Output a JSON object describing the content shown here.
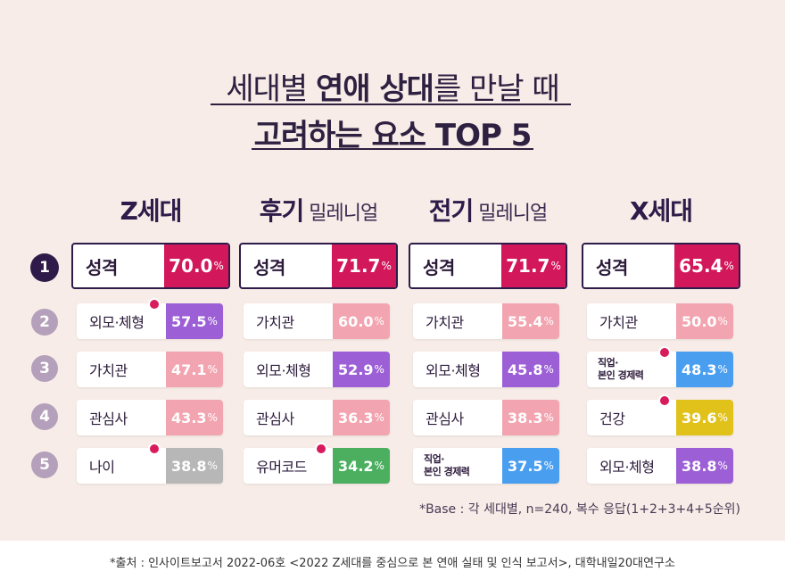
{
  "header": {
    "line1_light_a": "세대별 ",
    "line1_bold": "연애 상대",
    "line1_light_b": "를 만날 때",
    "line2": "고려하는 요소 TOP 5"
  },
  "chart_data": {
    "type": "table",
    "unit": "%",
    "ranks": [
      "1",
      "2",
      "3",
      "4",
      "5"
    ],
    "columns": [
      {
        "name": "Z세대",
        "sub": "",
        "items": [
          {
            "label": "성격",
            "value": 70.0,
            "display": "70.0",
            "color": "#d2175a"
          },
          {
            "label": "외모·체형",
            "value": 57.5,
            "display": "57.5",
            "color": "#9c5fd6",
            "dot": true
          },
          {
            "label": "가치관",
            "value": 47.1,
            "display": "47.1",
            "color": "#f2a4b0"
          },
          {
            "label": "관심사",
            "value": 43.3,
            "display": "43.3",
            "color": "#f2a4b0"
          },
          {
            "label": "나이",
            "value": 38.8,
            "display": "38.8",
            "color": "#b7b7b7",
            "dot": true
          }
        ]
      },
      {
        "name": "후기",
        "sub": " 밀레니얼",
        "items": [
          {
            "label": "성격",
            "value": 71.7,
            "display": "71.7",
            "color": "#d2175a"
          },
          {
            "label": "가치관",
            "value": 60.0,
            "display": "60.0",
            "color": "#f2a4b0"
          },
          {
            "label": "외모·체형",
            "value": 52.9,
            "display": "52.9",
            "color": "#9c5fd6"
          },
          {
            "label": "관심사",
            "value": 36.3,
            "display": "36.3",
            "color": "#f2a4b0"
          },
          {
            "label": "유머코드",
            "value": 34.2,
            "display": "34.2",
            "color": "#4caf60",
            "dot": true
          }
        ]
      },
      {
        "name": "전기",
        "sub": " 밀레니얼",
        "items": [
          {
            "label": "성격",
            "value": 71.7,
            "display": "71.7",
            "color": "#d2175a"
          },
          {
            "label": "가치관",
            "value": 55.4,
            "display": "55.4",
            "color": "#f2a4b0"
          },
          {
            "label": "외모·체형",
            "value": 45.8,
            "display": "45.8",
            "color": "#9c5fd6"
          },
          {
            "label": "관심사",
            "value": 38.3,
            "display": "38.3",
            "color": "#f2a4b0"
          },
          {
            "label": "직업·",
            "label2": "본인 경제력",
            "value": 37.5,
            "display": "37.5",
            "color": "#4a9ef0"
          }
        ]
      },
      {
        "name": "X세대",
        "sub": "",
        "items": [
          {
            "label": "성격",
            "value": 65.4,
            "display": "65.4",
            "color": "#d2175a"
          },
          {
            "label": "가치관",
            "value": 50.0,
            "display": "50.0",
            "color": "#f2a4b0"
          },
          {
            "label": "직업·",
            "label2": "본인 경제력",
            "value": 48.3,
            "display": "48.3",
            "color": "#4a9ef0",
            "dot": true
          },
          {
            "label": "건강",
            "value": 39.6,
            "display": "39.6",
            "color": "#e1c21b",
            "dot": true
          },
          {
            "label": "외모·체형",
            "value": 38.8,
            "display": "38.8",
            "color": "#9c5fd6"
          }
        ]
      }
    ]
  },
  "notes": {
    "base": "*Base : 각 세대별, n=240, 복수 응답(1+2+3+4+5순위)",
    "source": "*출처 : 인사이트보고서 2022-06호 <2022 Z세대를 중심으로 본 연애 실태 및 인식 보고서>, 대학내일20대연구소"
  }
}
